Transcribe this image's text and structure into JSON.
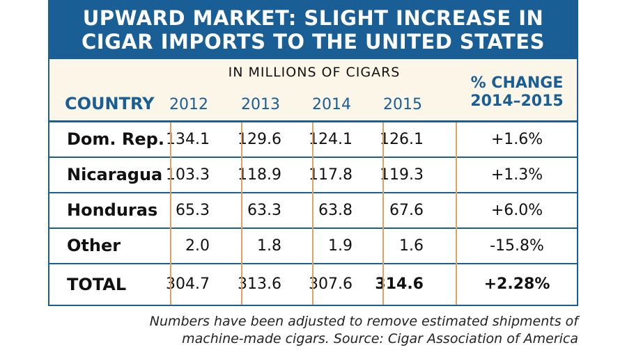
{
  "chart_data": {
    "type": "table",
    "title": "UPWARD MARKET: SLIGHT INCREASE IN CIGAR IMPORTS TO THE UNITED STATES",
    "title_lines": [
      "UPWARD MARKET: SLIGHT INCREASE IN",
      "CIGAR IMPORTS TO THE UNITED STATES"
    ],
    "unit_label": "IN MILLIONS OF CIGARS",
    "country_header": "COUNTRY",
    "years": [
      "2012",
      "2013",
      "2014",
      "2015"
    ],
    "change_header": [
      "% CHANGE",
      "2014–2015"
    ],
    "rows": [
      {
        "country": "Dom. Rep.",
        "values": [
          "134.1",
          "129.6",
          "124.1",
          "126.1"
        ],
        "change": "+1.6%"
      },
      {
        "country": "Nicaragua",
        "values": [
          "103.3",
          "118.9",
          "117.8",
          "119.3"
        ],
        "change": "+1.3%"
      },
      {
        "country": "Honduras",
        "values": [
          "65.3",
          "63.3",
          "63.8",
          "67.6"
        ],
        "change": "+6.0%"
      },
      {
        "country": "Other",
        "values": [
          "2.0",
          "1.8",
          "1.9",
          "1.6"
        ],
        "change": "-15.8%"
      },
      {
        "country": "TOTAL",
        "values": [
          "304.7",
          "313.6",
          "307.6",
          "314.6"
        ],
        "change": "+2.28%"
      }
    ],
    "note_lines": [
      "Numbers have been adjusted to remove estimated shipments of",
      "machine-made cigars. Source: Cigar Association of America"
    ],
    "colors": {
      "header_blue": "#1a5e96",
      "header_bg": "#fbf6e8",
      "divider_orange": "#e0a060"
    }
  }
}
